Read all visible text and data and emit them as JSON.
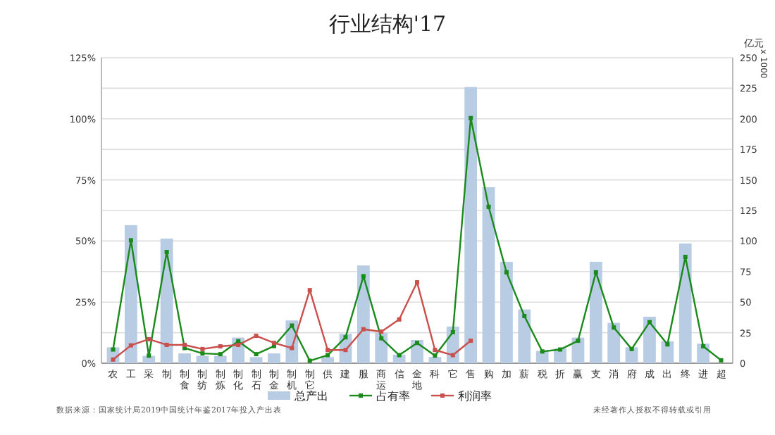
{
  "chart_data": {
    "type": "bar",
    "title": "行业结构'17",
    "y2label": "亿元",
    "categories": [
      "农",
      "工",
      "采",
      "制",
      "制食",
      "制纺",
      "制炼",
      "制化",
      "制石",
      "制金",
      "制机",
      "制它",
      "供",
      "建",
      "服",
      "商运",
      "信",
      "金地",
      "科",
      "它",
      "售",
      "购",
      "加",
      "薪",
      "税",
      "折",
      "赢",
      "支",
      "消",
      "府",
      "成",
      "出",
      "终",
      "进",
      "超"
    ],
    "series": [
      {
        "name": "总产出",
        "axis": "y2",
        "color": "#b8cce4",
        "values": [
          13,
          113,
          6,
          102,
          8,
          6,
          6,
          21,
          5,
          8,
          35,
          null,
          5,
          24,
          80,
          25,
          7,
          19,
          5,
          30,
          226,
          144,
          83,
          44,
          10,
          12,
          21,
          83,
          33,
          13,
          38,
          18,
          98,
          16,
          0
        ]
      },
      {
        "name": "占有率",
        "type": "line",
        "color": "#1a8a1a",
        "values": [
          5.6,
          50.3,
          3.1,
          45.5,
          6.2,
          4,
          3.7,
          9,
          3.7,
          7,
          15.4,
          1,
          3.3,
          10.6,
          35.6,
          10.2,
          3.3,
          8.3,
          3.1,
          12.7,
          100.3,
          64,
          37.2,
          19.3,
          4.8,
          5.6,
          9.2,
          37.2,
          14.6,
          5.8,
          16.8,
          7.7,
          43.5,
          6.9,
          1.2
        ]
      },
      {
        "name": "利润率",
        "type": "line",
        "color": "#c9504d",
        "values": [
          1.5,
          7.3,
          9.8,
          7.5,
          7.5,
          5.8,
          6.9,
          7.5,
          11.2,
          8.3,
          6.2,
          29.9,
          5.4,
          5.4,
          13.9,
          12.9,
          17.9,
          33.1,
          5.4,
          3.3,
          9.2,
          null,
          null,
          null,
          null,
          null,
          null,
          null,
          null,
          null,
          null,
          null,
          null,
          null,
          null
        ]
      }
    ],
    "ylim": [
      0,
      125
    ],
    "yticks": [
      {
        "value": 0,
        "label": "0%"
      },
      {
        "value": 25,
        "label": "25%"
      },
      {
        "value": 50,
        "label": "50%"
      },
      {
        "value": 75,
        "label": "75%"
      },
      {
        "value": 100,
        "label": "100%"
      },
      {
        "value": 125,
        "label": "125%"
      }
    ],
    "y2lim": [
      0,
      250
    ],
    "y2ticks": [
      0,
      25,
      50,
      75,
      100,
      125,
      150,
      175,
      200,
      225,
      250
    ],
    "grid": true,
    "legend": "bottom",
    "marker": "square",
    "annotations": [
      "数据来源：国家统计局2019中国统计年鉴2017年投入产出表",
      "未经著作人授权不得转载或引用",
      "x 1000"
    ]
  }
}
